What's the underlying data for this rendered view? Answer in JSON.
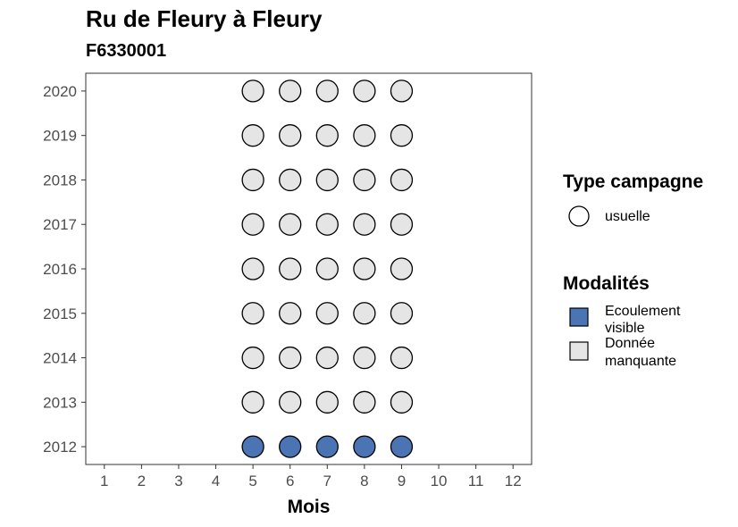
{
  "chart_data": {
    "type": "scatter",
    "title": "Ru de Fleury à Fleury",
    "subtitle": "F6330001",
    "xlabel": "Mois",
    "ylabel": "",
    "x_ticks": [
      "1",
      "2",
      "3",
      "4",
      "5",
      "6",
      "7",
      "8",
      "9",
      "10",
      "11",
      "12"
    ],
    "y_ticks": [
      "2012",
      "2013",
      "2014",
      "2015",
      "2016",
      "2017",
      "2018",
      "2019",
      "2020"
    ],
    "xlim": [
      0.5,
      12.5
    ],
    "ylim": [
      2011.6,
      2020.4
    ],
    "grid": false,
    "legend_position": "right",
    "colors": {
      "ecoulement_visible": "#4a74b4",
      "donnee_manquante": "#e5e5e5",
      "campagne_usuelle": "#ffffff"
    },
    "legend": {
      "type_campagne": {
        "title": "Type campagne",
        "items": [
          {
            "label": "usuelle",
            "shape": "circle"
          }
        ]
      },
      "modalites": {
        "title": "Modalités",
        "items": [
          {
            "label_line1": "Ecoulement",
            "label_line2": "visible",
            "key": "ecoulement_visible"
          },
          {
            "label_line1": "Donnée",
            "label_line2": "manquante",
            "key": "donnee_manquante"
          }
        ]
      }
    },
    "series": [
      {
        "modalite": "ecoulement_visible",
        "campagne": "usuelle",
        "points": [
          [
            5,
            2012
          ],
          [
            6,
            2012
          ],
          [
            7,
            2012
          ],
          [
            8,
            2012
          ],
          [
            9,
            2012
          ]
        ]
      },
      {
        "modalite": "donnee_manquante",
        "campagne": "usuelle",
        "points": [
          [
            5,
            2013
          ],
          [
            6,
            2013
          ],
          [
            7,
            2013
          ],
          [
            8,
            2013
          ],
          [
            9,
            2013
          ],
          [
            5,
            2014
          ],
          [
            6,
            2014
          ],
          [
            7,
            2014
          ],
          [
            8,
            2014
          ],
          [
            9,
            2014
          ],
          [
            5,
            2015
          ],
          [
            6,
            2015
          ],
          [
            7,
            2015
          ],
          [
            8,
            2015
          ],
          [
            9,
            2015
          ],
          [
            5,
            2016
          ],
          [
            6,
            2016
          ],
          [
            7,
            2016
          ],
          [
            8,
            2016
          ],
          [
            9,
            2016
          ],
          [
            5,
            2017
          ],
          [
            6,
            2017
          ],
          [
            7,
            2017
          ],
          [
            8,
            2017
          ],
          [
            9,
            2017
          ],
          [
            5,
            2018
          ],
          [
            6,
            2018
          ],
          [
            7,
            2018
          ],
          [
            8,
            2018
          ],
          [
            9,
            2018
          ],
          [
            5,
            2019
          ],
          [
            6,
            2019
          ],
          [
            7,
            2019
          ],
          [
            8,
            2019
          ],
          [
            9,
            2019
          ],
          [
            5,
            2020
          ],
          [
            6,
            2020
          ],
          [
            7,
            2020
          ],
          [
            8,
            2020
          ],
          [
            9,
            2020
          ]
        ]
      }
    ]
  }
}
